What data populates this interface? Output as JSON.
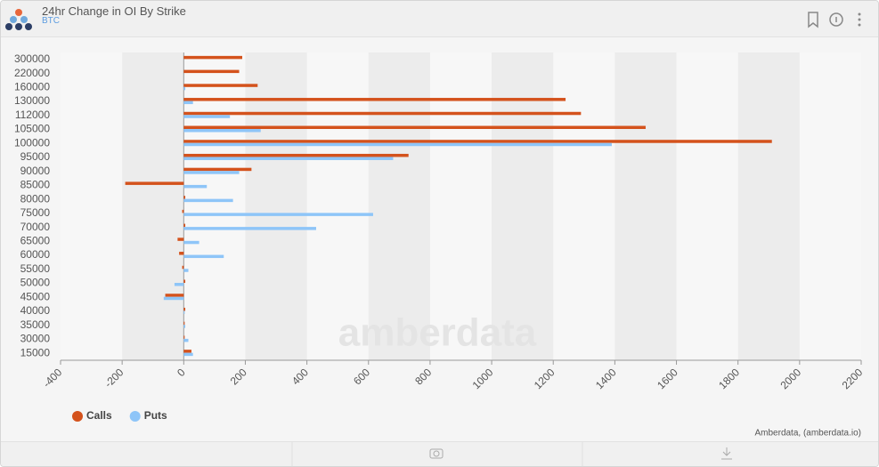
{
  "header": {
    "title": "24hr Change in OI By Strike",
    "subtitle": "BTC"
  },
  "chart_data": {
    "type": "bar",
    "orientation": "horizontal",
    "categories": [
      "300000",
      "220000",
      "160000",
      "130000",
      "112000",
      "105000",
      "100000",
      "95000",
      "90000",
      "85000",
      "80000",
      "75000",
      "70000",
      "65000",
      "60000",
      "55000",
      "50000",
      "45000",
      "40000",
      "35000",
      "30000",
      "15000"
    ],
    "series": [
      {
        "name": "Calls",
        "color": "#d4521c",
        "values": [
          190,
          180,
          240,
          1240,
          1290,
          1500,
          1910,
          730,
          220,
          -190,
          5,
          -5,
          5,
          -20,
          -15,
          -5,
          5,
          -60,
          5,
          3,
          3,
          25
        ]
      },
      {
        "name": "Puts",
        "color": "#8ec5f8",
        "values": [
          0,
          0,
          5,
          30,
          150,
          250,
          1390,
          680,
          180,
          75,
          160,
          615,
          430,
          50,
          130,
          15,
          -30,
          -65,
          3,
          5,
          15,
          30
        ]
      }
    ],
    "xlim": [
      -400,
      2200
    ],
    "xticks": [
      -400,
      -200,
      0,
      200,
      400,
      600,
      800,
      1000,
      1200,
      1400,
      1600,
      1800,
      2000,
      2200
    ],
    "legend": "bottom-left",
    "credit": "Amberdata, (amberdata.io)",
    "watermark": "amberdata"
  }
}
